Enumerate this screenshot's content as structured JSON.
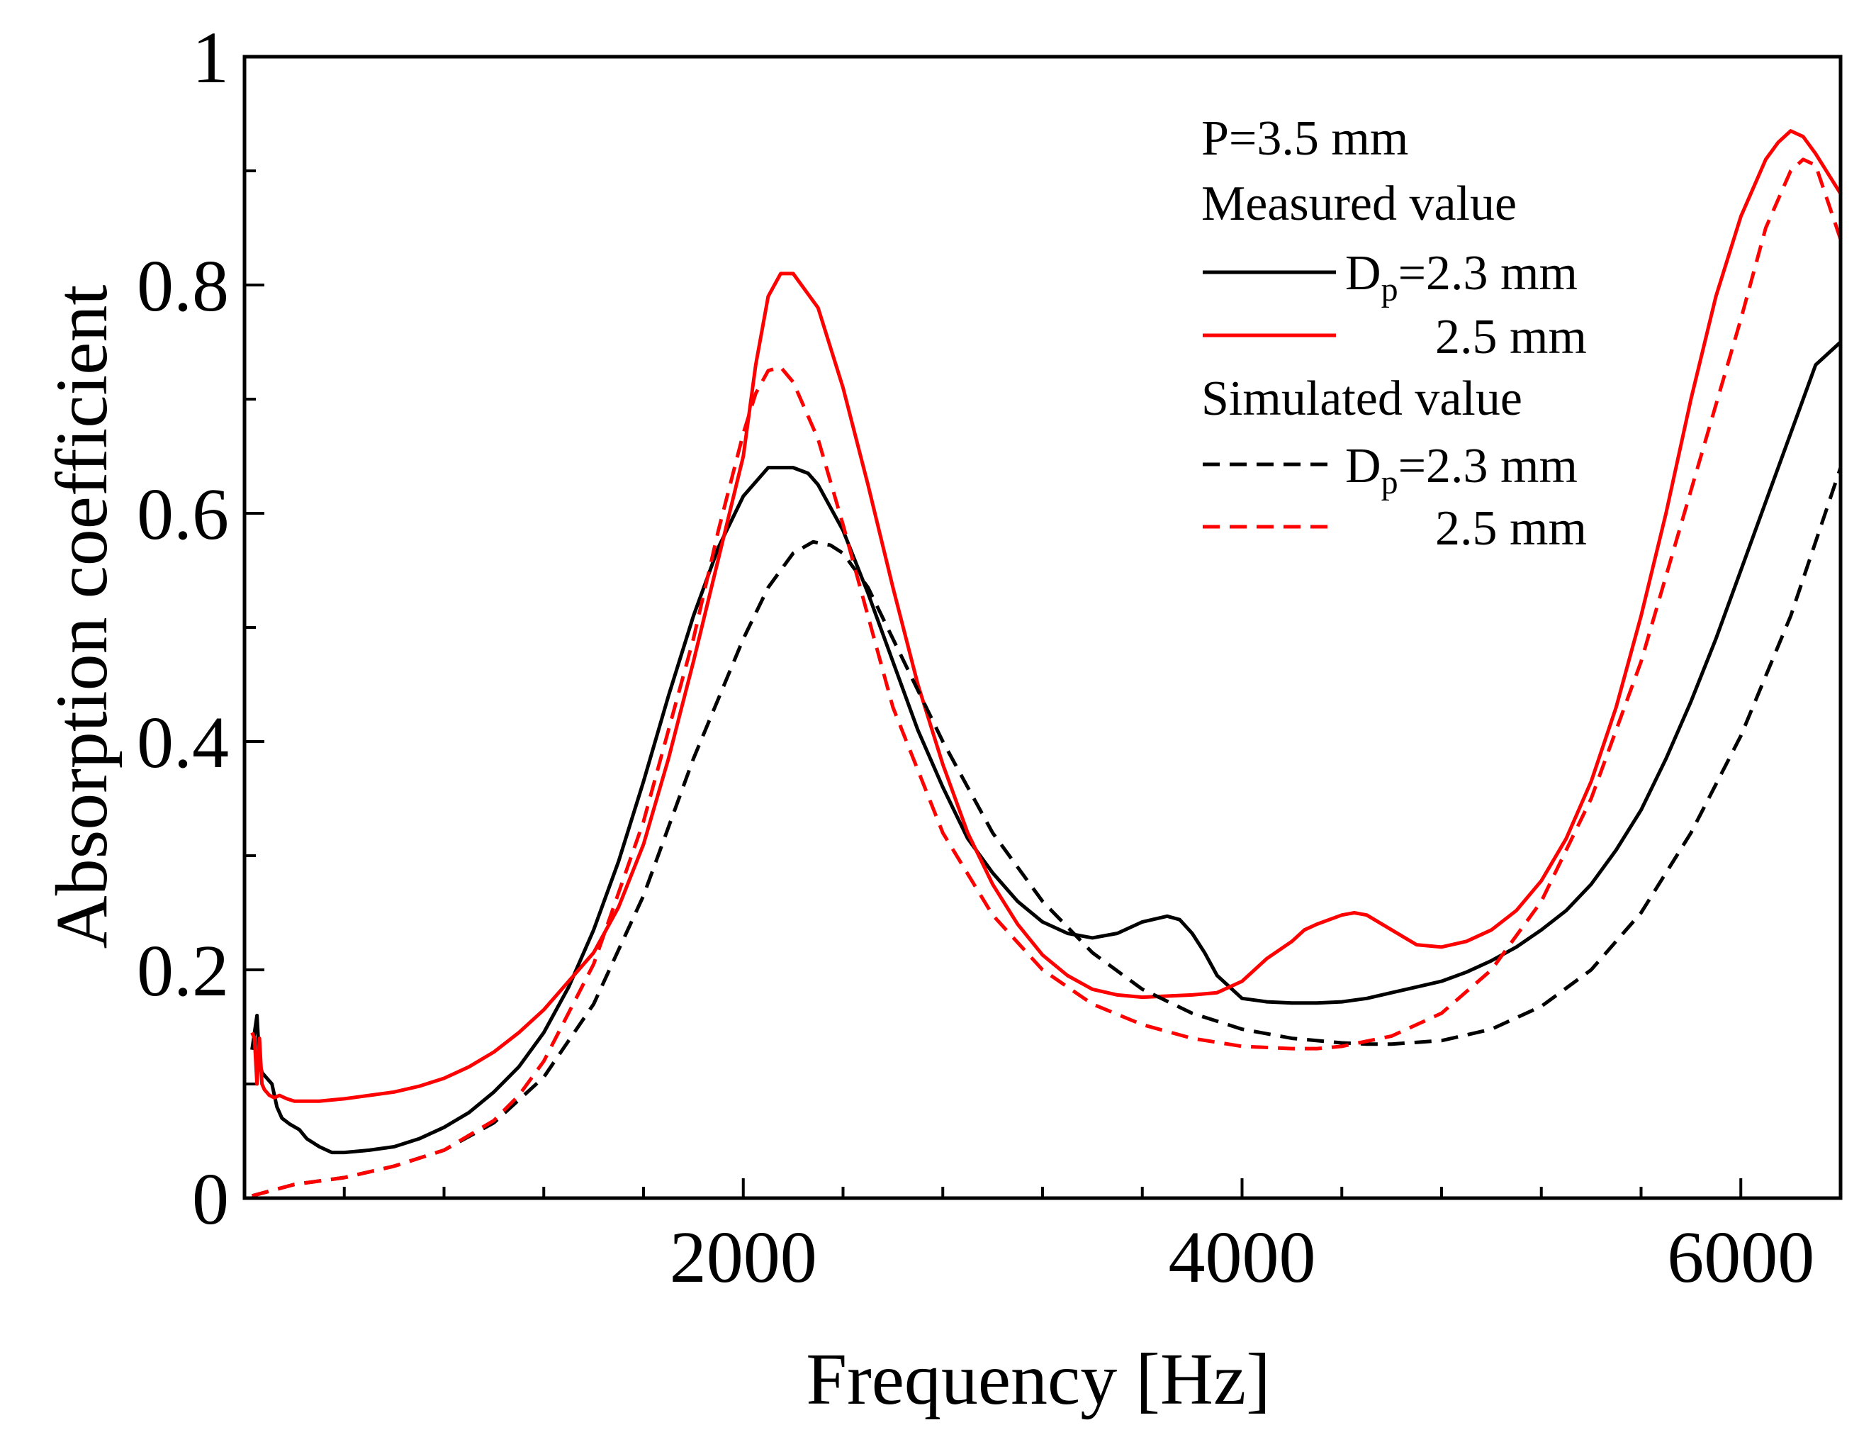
{
  "chart_data": {
    "type": "line",
    "xlabel": "Frequency [Hz]",
    "ylabel": "Absorption coefficient",
    "xlim": [
      0,
      6400
    ],
    "ylim": [
      0,
      1
    ],
    "x_ticks": [
      {
        "value": 2000,
        "label": "2000"
      },
      {
        "value": 4000,
        "label": "4000"
      },
      {
        "value": 6000,
        "label": "6000"
      }
    ],
    "x_minor_ticks": [
      400,
      800,
      1200,
      1600,
      2400,
      2800,
      3200,
      3600,
      4400,
      4800,
      5200,
      5600
    ],
    "y_ticks": [
      {
        "value": 0,
        "label": "0"
      },
      {
        "value": 0.2,
        "label": "0.2"
      },
      {
        "value": 0.4,
        "label": "0.4"
      },
      {
        "value": 0.6,
        "label": "0.6"
      },
      {
        "value": 0.8,
        "label": "0.8"
      },
      {
        "value": 1,
        "label": "1"
      }
    ],
    "y_minor_ticks": [
      0.1,
      0.3,
      0.5,
      0.7,
      0.9
    ],
    "legend": {
      "position": "top-right",
      "header": "P=3.5 mm",
      "group_measured": "Measured value",
      "group_simulated": "Simulated value",
      "label_prefix_main": "D",
      "label_prefix_sub": "p",
      "label_23": "=2.3 mm",
      "label_25": "2.5 mm"
    },
    "series": [
      {
        "name": "Measured Dp=2.3 mm",
        "group": "measured",
        "color": "#000000",
        "dash": "solid",
        "x": [
          30,
          50,
          60,
          70,
          90,
          110,
          130,
          150,
          180,
          220,
          250,
          300,
          350,
          400,
          500,
          600,
          700,
          800,
          900,
          1000,
          1100,
          1200,
          1300,
          1400,
          1500,
          1600,
          1700,
          1800,
          1900,
          2000,
          2100,
          2200,
          2260,
          2300,
          2400,
          2500,
          2600,
          2700,
          2800,
          2900,
          3000,
          3100,
          3200,
          3300,
          3400,
          3500,
          3600,
          3700,
          3750,
          3800,
          3850,
          3900,
          4000,
          4100,
          4200,
          4300,
          4400,
          4500,
          4600,
          4700,
          4800,
          4900,
          5000,
          5100,
          5200,
          5300,
          5400,
          5500,
          5600,
          5700,
          5800,
          5900,
          6000,
          6100,
          6200,
          6300,
          6400
        ],
        "y": [
          0.13,
          0.16,
          0.12,
          0.11,
          0.105,
          0.1,
          0.08,
          0.07,
          0.065,
          0.06,
          0.052,
          0.045,
          0.04,
          0.04,
          0.042,
          0.045,
          0.052,
          0.062,
          0.075,
          0.093,
          0.115,
          0.145,
          0.185,
          0.235,
          0.295,
          0.365,
          0.44,
          0.51,
          0.57,
          0.615,
          0.64,
          0.64,
          0.635,
          0.625,
          0.585,
          0.53,
          0.47,
          0.41,
          0.36,
          0.315,
          0.285,
          0.26,
          0.242,
          0.232,
          0.228,
          0.232,
          0.242,
          0.247,
          0.244,
          0.232,
          0.215,
          0.195,
          0.175,
          0.172,
          0.171,
          0.171,
          0.172,
          0.175,
          0.18,
          0.185,
          0.19,
          0.198,
          0.208,
          0.22,
          0.235,
          0.252,
          0.275,
          0.305,
          0.34,
          0.385,
          0.435,
          0.49,
          0.55,
          0.61,
          0.67,
          0.73,
          0.75
        ]
      },
      {
        "name": "Measured Dp=2.5 mm",
        "group": "measured",
        "color": "#ff0000",
        "dash": "solid",
        "x": [
          30,
          40,
          50,
          60,
          70,
          80,
          100,
          120,
          140,
          170,
          200,
          250,
          300,
          350,
          400,
          500,
          600,
          700,
          800,
          900,
          1000,
          1100,
          1200,
          1300,
          1400,
          1500,
          1600,
          1700,
          1800,
          1900,
          2000,
          2050,
          2100,
          2150,
          2200,
          2300,
          2400,
          2500,
          2600,
          2700,
          2800,
          2900,
          3000,
          3100,
          3200,
          3300,
          3400,
          3500,
          3600,
          3700,
          3800,
          3900,
          4000,
          4100,
          4200,
          4250,
          4300,
          4400,
          4450,
          4500,
          4600,
          4700,
          4800,
          4900,
          5000,
          5100,
          5200,
          5300,
          5400,
          5500,
          5600,
          5700,
          5800,
          5900,
          6000,
          6100,
          6150,
          6200,
          6250,
          6300,
          6400
        ],
        "y": [
          0.145,
          0.14,
          0.1,
          0.14,
          0.1,
          0.095,
          0.09,
          0.088,
          0.09,
          0.087,
          0.085,
          0.085,
          0.085,
          0.086,
          0.087,
          0.09,
          0.093,
          0.098,
          0.105,
          0.115,
          0.128,
          0.145,
          0.165,
          0.19,
          0.215,
          0.255,
          0.31,
          0.385,
          0.47,
          0.56,
          0.65,
          0.73,
          0.79,
          0.81,
          0.81,
          0.78,
          0.71,
          0.625,
          0.535,
          0.45,
          0.38,
          0.32,
          0.275,
          0.24,
          0.213,
          0.195,
          0.183,
          0.178,
          0.176,
          0.177,
          0.178,
          0.18,
          0.19,
          0.21,
          0.225,
          0.235,
          0.24,
          0.248,
          0.25,
          0.248,
          0.235,
          0.222,
          0.22,
          0.225,
          0.235,
          0.252,
          0.278,
          0.315,
          0.365,
          0.43,
          0.51,
          0.6,
          0.7,
          0.79,
          0.86,
          0.91,
          0.925,
          0.935,
          0.93,
          0.915,
          0.88
        ]
      },
      {
        "name": "Simulated Dp=2.3 mm",
        "group": "simulated",
        "color": "#000000",
        "dash": "dashed",
        "x": [
          30,
          200,
          400,
          600,
          800,
          1000,
          1200,
          1400,
          1600,
          1800,
          2000,
          2100,
          2200,
          2280,
          2350,
          2400,
          2500,
          2600,
          2800,
          3000,
          3200,
          3400,
          3600,
          3800,
          4000,
          4200,
          4400,
          4500,
          4600,
          4800,
          5000,
          5200,
          5400,
          5600,
          5800,
          6000,
          6200,
          6400
        ],
        "y": [
          0.002,
          0.012,
          0.018,
          0.028,
          0.042,
          0.066,
          0.106,
          0.17,
          0.265,
          0.385,
          0.49,
          0.535,
          0.565,
          0.575,
          0.572,
          0.565,
          0.535,
          0.49,
          0.4,
          0.32,
          0.26,
          0.215,
          0.183,
          0.162,
          0.148,
          0.14,
          0.136,
          0.135,
          0.135,
          0.138,
          0.148,
          0.168,
          0.2,
          0.25,
          0.32,
          0.405,
          0.51,
          0.64
        ]
      },
      {
        "name": "Simulated Dp=2.5 mm",
        "group": "simulated",
        "color": "#ff0000",
        "dash": "dashed",
        "x": [
          30,
          200,
          400,
          600,
          800,
          1000,
          1100,
          1200,
          1400,
          1600,
          1800,
          1900,
          2000,
          2050,
          2100,
          2150,
          2200,
          2300,
          2400,
          2500,
          2600,
          2800,
          3000,
          3200,
          3400,
          3600,
          3800,
          4000,
          4200,
          4300,
          4400,
          4600,
          4800,
          5000,
          5200,
          5400,
          5600,
          5800,
          6000,
          6100,
          6200,
          6250,
          6300,
          6400
        ],
        "y": [
          0.002,
          0.012,
          0.018,
          0.028,
          0.042,
          0.068,
          0.09,
          0.12,
          0.205,
          0.33,
          0.49,
          0.585,
          0.67,
          0.705,
          0.725,
          0.728,
          0.715,
          0.665,
          0.59,
          0.51,
          0.43,
          0.32,
          0.248,
          0.2,
          0.17,
          0.152,
          0.14,
          0.133,
          0.131,
          0.131,
          0.133,
          0.142,
          0.162,
          0.2,
          0.26,
          0.35,
          0.47,
          0.62,
          0.77,
          0.85,
          0.9,
          0.91,
          0.905,
          0.84
        ]
      }
    ]
  }
}
